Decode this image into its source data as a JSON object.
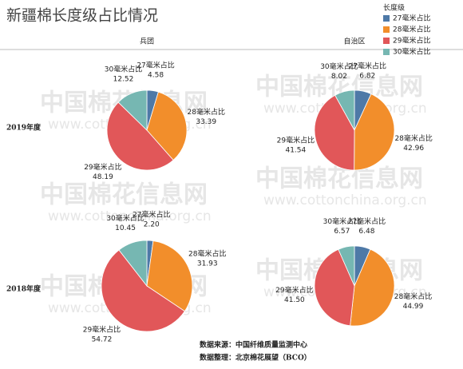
{
  "title": "新疆棉长度级占比情况",
  "columns": [
    "兵团",
    "自治区"
  ],
  "rows": [
    "2019年度",
    "2018年度"
  ],
  "legend": {
    "title": "长度级",
    "position": "top-right"
  },
  "watermark": {
    "name": "中国棉花信息网",
    "url": "www.cottonchina.org.cn"
  },
  "footer": [
    "数据来源：中国纤维质量监测中心",
    "数据整理：北京棉花展望（BCO）"
  ],
  "chart_data": [
    {
      "type": "pie",
      "categories": [
        "27毫米占比",
        "28毫米占比",
        "29毫米占比",
        "30毫米占比"
      ],
      "values": [
        4.58,
        33.39,
        48.19,
        12.52
      ],
      "value_labels": [
        "4.58",
        "33.39",
        "48.19",
        "12.52"
      ],
      "colors": [
        "#4e79a7",
        "#f28e2b",
        "#e15759",
        "#76b7b2"
      ]
    },
    {
      "type": "pie",
      "categories": [
        "27毫米占比",
        "28毫米占比",
        "29毫米占比",
        "30毫米占比"
      ],
      "values": [
        6.82,
        42.96,
        41.54,
        8.02
      ],
      "value_labels": [
        "6.82",
        "42.96",
        "41.54",
        "8.02"
      ],
      "colors": [
        "#4e79a7",
        "#f28e2b",
        "#e15759",
        "#76b7b2"
      ]
    },
    {
      "type": "pie",
      "categories": [
        "27毫米占比",
        "28毫米占比",
        "29毫米占比",
        "30毫米占比"
      ],
      "values": [
        2.2,
        31.93,
        54.72,
        10.45
      ],
      "value_labels": [
        "2.20",
        "31.93",
        "54.72",
        "10.45"
      ],
      "colors": [
        "#4e79a7",
        "#f28e2b",
        "#e15759",
        "#76b7b2"
      ]
    },
    {
      "type": "pie",
      "categories": [
        "27毫米占比",
        "28毫米占比",
        "29毫米占比",
        "30毫米占比"
      ],
      "values": [
        6.48,
        44.99,
        41.5,
        6.57
      ],
      "value_labels": [
        "6.48",
        "44.99",
        "41.50",
        "6.57"
      ],
      "colors": [
        "#4e79a7",
        "#f28e2b",
        "#e15759",
        "#76b7b2"
      ]
    }
  ]
}
